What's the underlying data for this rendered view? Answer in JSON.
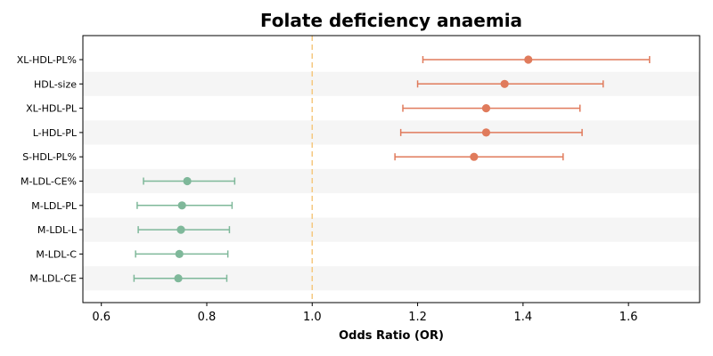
{
  "chart_data": {
    "type": "forest",
    "title": "Folate deficiency anaemia",
    "xlabel": "Odds Ratio (OR)",
    "ylabel": "",
    "xlim": [
      0.565,
      1.735
    ],
    "xticks": [
      0.6,
      0.8,
      1.0,
      1.2,
      1.4,
      1.6
    ],
    "xtick_labels": [
      "0.6",
      "0.8",
      "1.0",
      "1.2",
      "1.4",
      "1.6"
    ],
    "reference_line": 1.0,
    "grid": false,
    "alternating_row_shading": true,
    "colors": {
      "positive": "#e07b5c",
      "negative": "#7fb89a",
      "reference_line": "#f5c77e",
      "row_shade": "#f5f5f5"
    },
    "rows": [
      {
        "label": "XL-HDL-PL%",
        "or": 1.41,
        "lower": 1.21,
        "upper": 1.64,
        "group": "positive"
      },
      {
        "label": "HDL-size",
        "or": 1.365,
        "lower": 1.2,
        "upper": 1.552,
        "group": "positive"
      },
      {
        "label": "XL-HDL-PL",
        "or": 1.33,
        "lower": 1.172,
        "upper": 1.508,
        "group": "positive"
      },
      {
        "label": "L-HDL-PL",
        "or": 1.33,
        "lower": 1.168,
        "upper": 1.512,
        "group": "positive"
      },
      {
        "label": "S-HDL-PL%",
        "or": 1.307,
        "lower": 1.157,
        "upper": 1.476,
        "group": "positive"
      },
      {
        "label": "M-LDL-CE%",
        "or": 0.763,
        "lower": 0.68,
        "upper": 0.853,
        "group": "negative"
      },
      {
        "label": "M-LDL-PL",
        "or": 0.753,
        "lower": 0.668,
        "upper": 0.848,
        "group": "negative"
      },
      {
        "label": "M-LDL-L",
        "or": 0.751,
        "lower": 0.67,
        "upper": 0.843,
        "group": "negative"
      },
      {
        "label": "M-LDL-C",
        "or": 0.748,
        "lower": 0.665,
        "upper": 0.84,
        "group": "negative"
      },
      {
        "label": "M-LDL-CE",
        "or": 0.746,
        "lower": 0.662,
        "upper": 0.838,
        "group": "negative"
      }
    ]
  }
}
